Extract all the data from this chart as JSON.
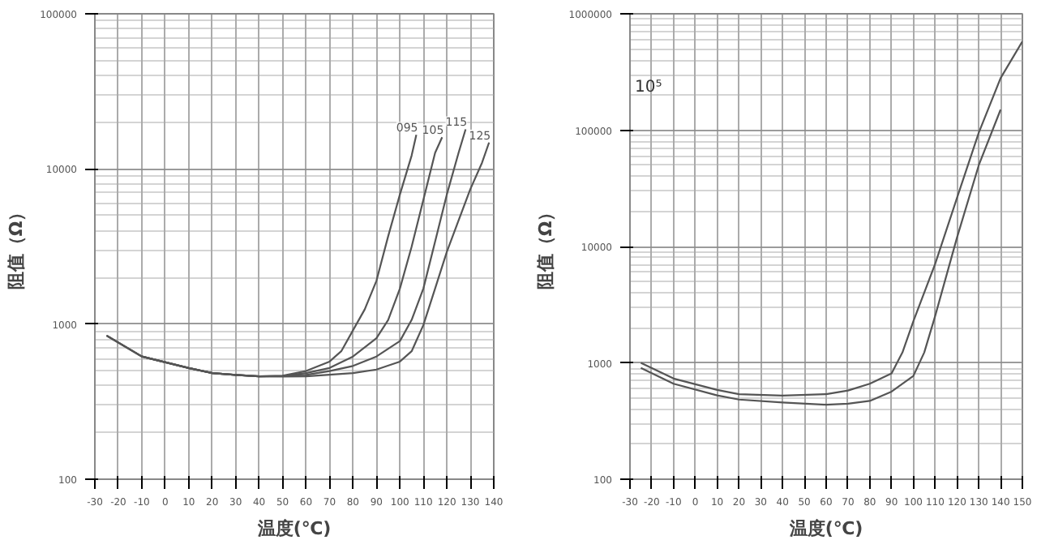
{
  "chart_data": [
    {
      "type": "line",
      "xlabel": "温度(℃)",
      "ylabel": "阻值（Ω）",
      "log": "y",
      "grid": true,
      "marker": "none",
      "line_style": "solid",
      "xlim": [
        -30,
        140
      ],
      "xticks": [
        -30,
        -20,
        -10,
        0,
        10,
        20,
        30,
        40,
        50,
        60,
        70,
        80,
        90,
        100,
        110,
        120,
        130,
        140
      ],
      "ylim": [
        100,
        100000
      ],
      "yticks": [
        100,
        1000,
        10000,
        100000
      ],
      "series": [
        {
          "name": "095",
          "color": "#555555",
          "x": [
            -25,
            -10,
            10,
            20,
            30,
            40,
            50,
            60,
            70,
            75,
            80,
            85,
            90,
            95,
            100,
            105,
            107
          ],
          "values": [
            843,
            618,
            521,
            483,
            470,
            460,
            465,
            498,
            573,
            668,
            911,
            1242,
            1900,
            3680,
            6840,
            12200,
            16600
          ]
        },
        {
          "name": "105",
          "color": "#555555",
          "x": [
            -25,
            -10,
            10,
            20,
            30,
            40,
            50,
            60,
            70,
            80,
            90,
            95,
            100,
            105,
            110,
            115,
            118
          ],
          "values": [
            843,
            618,
            521,
            483,
            470,
            460,
            463,
            483,
            521,
            618,
            811,
            1063,
            1694,
            3150,
            6320,
            12700,
            16000
          ]
        },
        {
          "name": "115",
          "color": "#555555",
          "x": [
            -25,
            -10,
            10,
            20,
            30,
            40,
            50,
            60,
            70,
            80,
            90,
            100,
            105,
            110,
            115,
            120,
            125,
            128
          ],
          "values": [
            843,
            618,
            521,
            483,
            470,
            460,
            461,
            470,
            498,
            537,
            618,
            777,
            1063,
            1694,
            3400,
            6840,
            12700,
            18000
          ]
        },
        {
          "name": "125",
          "color": "#555555",
          "x": [
            -25,
            -10,
            10,
            20,
            30,
            40,
            50,
            60,
            80,
            90,
            100,
            105,
            110,
            115,
            120,
            125,
            130,
            135,
            138
          ],
          "values": [
            843,
            618,
            521,
            483,
            470,
            460,
            459,
            460,
            483,
            509,
            573,
            668,
            985,
            1694,
            2920,
            4650,
            7400,
            10960,
            14800
          ]
        }
      ]
    },
    {
      "type": "line",
      "xlabel": "温度(℃)",
      "ylabel": "阻值（Ω）",
      "log": "y",
      "grid": true,
      "marker": "none",
      "line_style": "solid",
      "xlim": [
        -30,
        150
      ],
      "xticks": [
        -30,
        -20,
        -10,
        0,
        10,
        20,
        30,
        40,
        50,
        60,
        70,
        80,
        90,
        100,
        110,
        120,
        130,
        140,
        150
      ],
      "ylim": [
        100,
        1000000
      ],
      "yticks": [
        100,
        1000,
        10000,
        100000,
        1000000
      ],
      "annotations": [
        "10⁵"
      ],
      "series": [
        {
          "color": "#555555",
          "x": [
            -25,
            -10,
            10,
            20,
            40,
            60,
            70,
            80,
            90,
            95,
            100,
            110,
            120,
            130,
            140,
            150
          ],
          "values": [
            1000,
            733,
            585,
            538,
            524,
            538,
            578,
            662,
            813,
            1230,
            2280,
            7100,
            26100,
            95000,
            280000,
            578000
          ]
        },
        {
          "color": "#555555",
          "x": [
            -25,
            -10,
            10,
            20,
            40,
            60,
            70,
            80,
            90,
            100,
            105,
            110,
            120,
            130,
            140
          ],
          "values": [
            903,
            662,
            525,
            484,
            456,
            437,
            446,
            471,
            566,
            772,
            1230,
            2530,
            11900,
            50000,
            150000
          ]
        }
      ]
    }
  ]
}
